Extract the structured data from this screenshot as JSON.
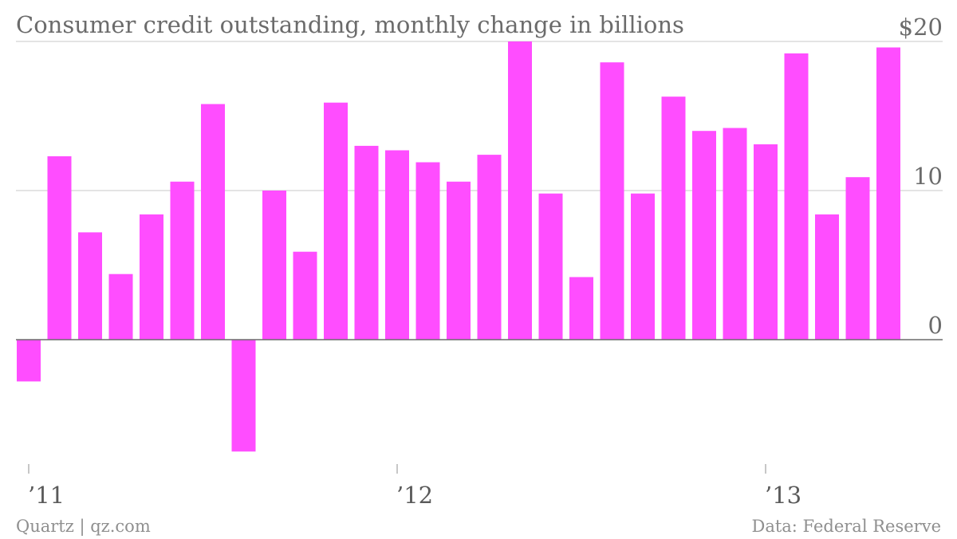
{
  "chart_data": {
    "type": "bar",
    "title": "Consumer credit outstanding, monthly change in billions",
    "y_ticks": [
      "0",
      "10",
      "$20"
    ],
    "y_tick_values": [
      0,
      10,
      20
    ],
    "ylim": [
      -8,
      20
    ],
    "x_ticks": [
      {
        "label": "’11",
        "index": 0
      },
      {
        "label": "’12",
        "index": 12
      },
      {
        "label": "’13",
        "index": 24
      }
    ],
    "grid": true,
    "color": "#ff4dff",
    "values": [
      -2.8,
      12.3,
      7.2,
      4.4,
      8.4,
      10.6,
      15.8,
      -7.5,
      10.0,
      5.9,
      15.9,
      13.0,
      12.7,
      11.9,
      10.6,
      12.4,
      20.0,
      9.8,
      4.2,
      18.6,
      9.8,
      16.3,
      14.0,
      14.2,
      13.1,
      19.2,
      8.4,
      10.9,
      19.6
    ]
  },
  "footer": {
    "source_left": "Quartz | qz.com",
    "source_right": "Data: Federal Reserve"
  }
}
